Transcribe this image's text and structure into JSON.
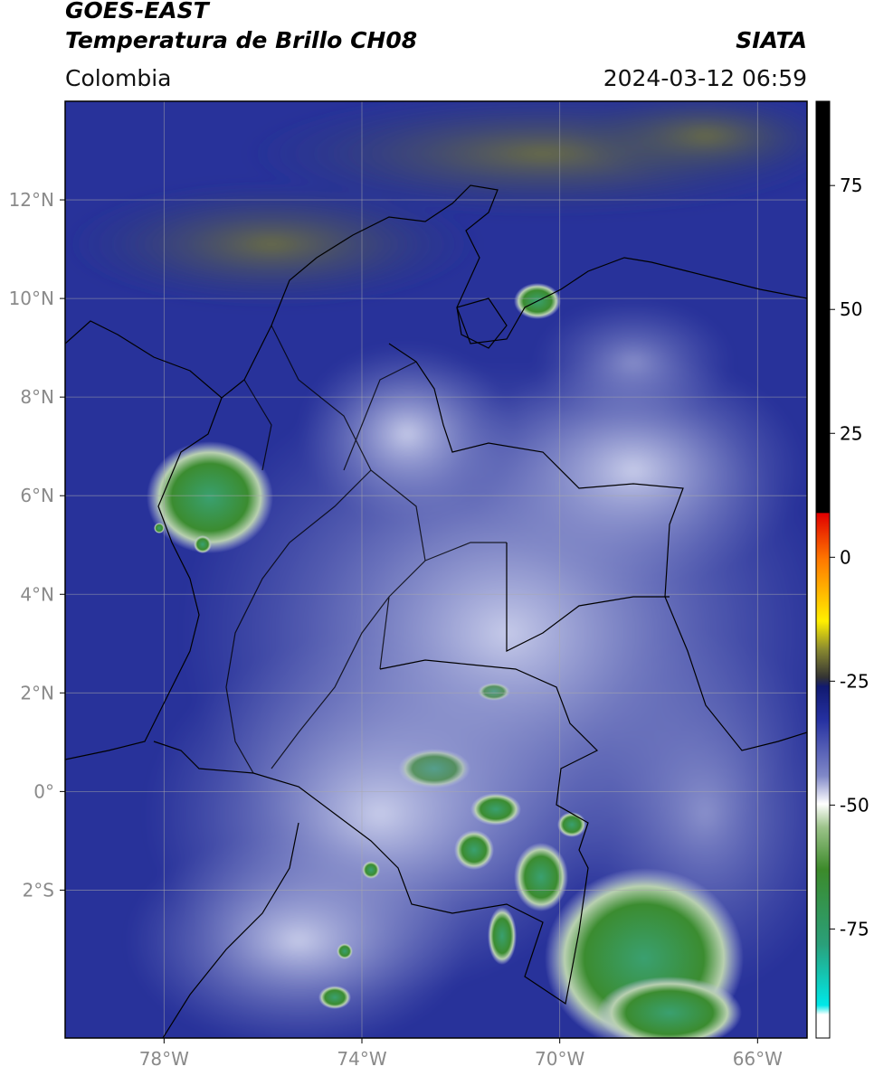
{
  "header": {
    "title": "GOES-EAST",
    "subtitle": "Temperatura de Brillo CH08",
    "source": "SIATA",
    "region": "Colombia",
    "datetime": "2024-03-12 06:59"
  },
  "map": {
    "xlim": [
      -80,
      -65
    ],
    "ylim": [
      -5,
      14
    ],
    "xticks": [
      {
        "value": -78,
        "label": "78°W"
      },
      {
        "value": -74,
        "label": "74°W"
      },
      {
        "value": -70,
        "label": "70°W"
      },
      {
        "value": -66,
        "label": "66°W"
      }
    ],
    "yticks": [
      {
        "value": 12,
        "label": "12°N"
      },
      {
        "value": 10,
        "label": "10°N"
      },
      {
        "value": 8,
        "label": "8°N"
      },
      {
        "value": 6,
        "label": "6°N"
      },
      {
        "value": 4,
        "label": "4°N"
      },
      {
        "value": 2,
        "label": "2°N"
      },
      {
        "value": 0,
        "label": "0°"
      },
      {
        "value": -2,
        "label": "2°S"
      }
    ],
    "grid": true
  },
  "colorbar": {
    "lim": [
      -97,
      92
    ],
    "ticks": [
      75,
      50,
      25,
      0,
      -25,
      -50,
      -75
    ]
  }
}
